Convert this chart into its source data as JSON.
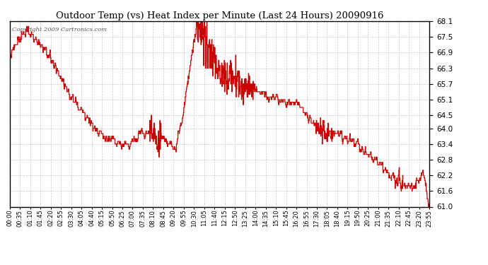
{
  "title": "Outdoor Temp (vs) Heat Index per Minute (Last 24 Hours) 20090916",
  "copyright_text": "Copyright 2009 Cartronics.com",
  "line_color": "#cc0000",
  "background_color": "#ffffff",
  "grid_color": "#bbbbbb",
  "y_min": 61.0,
  "y_max": 68.1,
  "y_ticks": [
    61.0,
    61.6,
    62.2,
    62.8,
    63.4,
    64.0,
    64.5,
    65.1,
    65.7,
    66.3,
    66.9,
    67.5,
    68.1
  ],
  "x_tick_labels": [
    "00:00",
    "00:35",
    "01:10",
    "01:45",
    "02:20",
    "02:55",
    "03:30",
    "04:05",
    "04:40",
    "05:15",
    "05:50",
    "06:25",
    "07:00",
    "07:35",
    "08:10",
    "08:45",
    "09:20",
    "09:55",
    "10:30",
    "11:05",
    "11:40",
    "12:15",
    "12:50",
    "13:25",
    "14:00",
    "14:35",
    "15:10",
    "15:45",
    "16:20",
    "16:55",
    "17:30",
    "18:05",
    "18:40",
    "19:15",
    "19:50",
    "20:25",
    "21:00",
    "21:35",
    "22:10",
    "22:45",
    "23:20",
    "23:55"
  ],
  "figsize": [
    6.9,
    3.75
  ],
  "dpi": 100
}
